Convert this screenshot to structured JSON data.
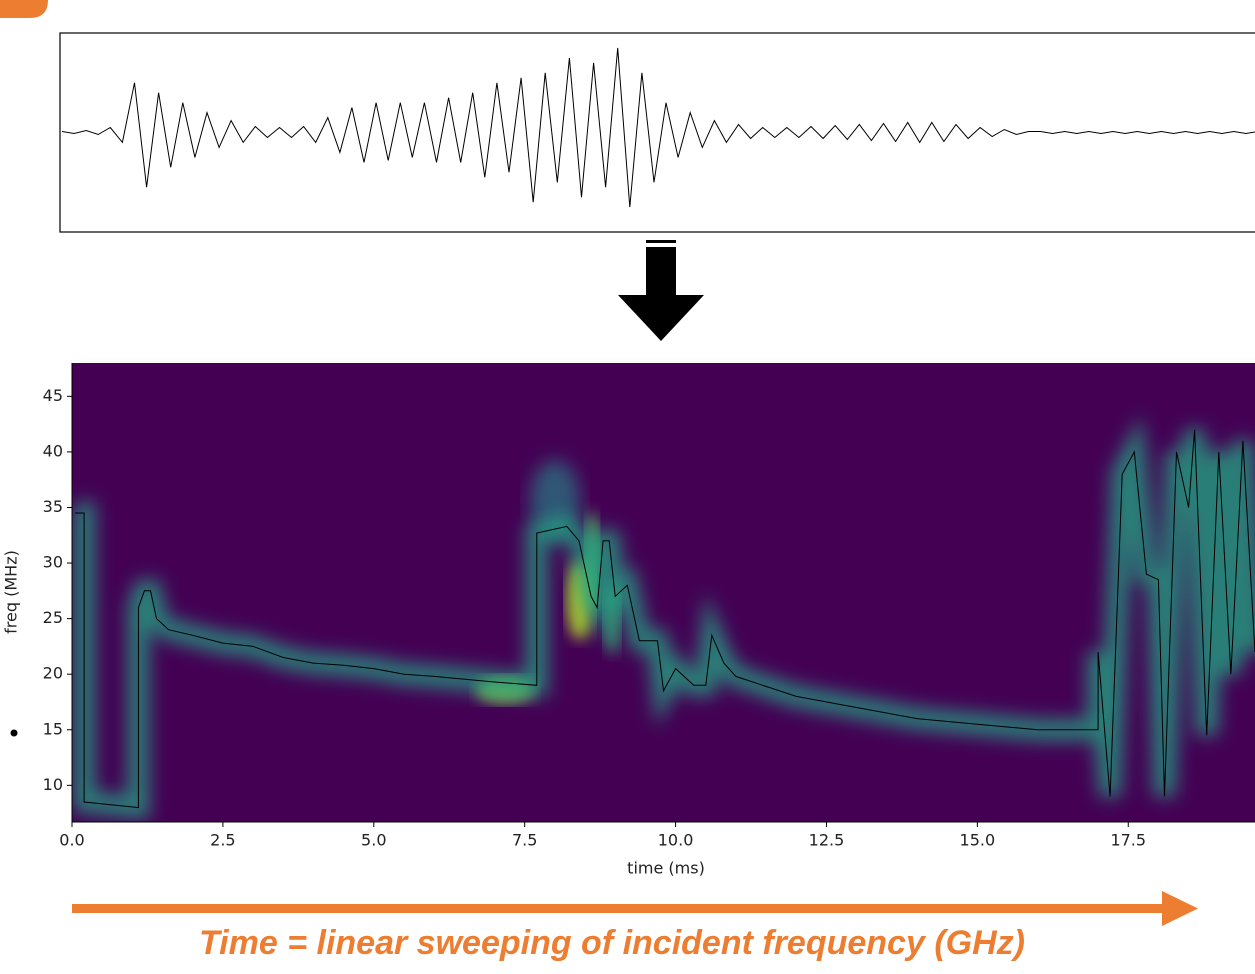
{
  "chart_data": [
    {
      "type": "line",
      "color": "#000000",
      "ylim": [
        -1,
        1
      ],
      "values": [
        0.01,
        -0.01,
        0.02,
        -0.02,
        0.05,
        -0.1,
        0.5,
        -0.55,
        0.4,
        -0.35,
        0.3,
        -0.25,
        0.2,
        -0.15,
        0.12,
        -0.1,
        0.06,
        -0.05,
        0.05,
        -0.05,
        0.06,
        -0.1,
        0.15,
        -0.2,
        0.25,
        -0.3,
        0.3,
        -0.28,
        0.3,
        -0.25,
        0.3,
        -0.3,
        0.35,
        -0.3,
        0.4,
        -0.45,
        0.5,
        -0.4,
        0.55,
        -0.7,
        0.6,
        -0.5,
        0.75,
        -0.65,
        0.7,
        -0.55,
        0.85,
        -0.75,
        0.6,
        -0.5,
        0.3,
        -0.25,
        0.2,
        -0.15,
        0.12,
        -0.1,
        0.08,
        -0.06,
        0.05,
        -0.05,
        0.05,
        -0.05,
        0.06,
        -0.06,
        0.07,
        -0.07,
        0.08,
        -0.08,
        0.09,
        -0.09,
        0.1,
        -0.1,
        0.1,
        -0.09,
        0.08,
        -0.06,
        0.05,
        -0.04,
        0.03,
        -0.02,
        0.01,
        0.01,
        -0.01,
        0.01,
        -0.01,
        0.01,
        -0.01,
        0.01,
        -0.01,
        0.01,
        -0.01,
        0.01,
        -0.01,
        0.01,
        -0.01,
        0.01,
        -0.01,
        0.01,
        -0.01,
        0.01
      ]
    },
    {
      "type": "spectrogram",
      "xlabel": "time (ms)",
      "ylabel": "freq (MHz)",
      "color": "#000000",
      "xlim": [
        0,
        19.6
      ],
      "ylim": [
        6.7,
        48
      ],
      "xticks": [
        {
          "value": 0,
          "label": "0.0"
        },
        {
          "value": 2.5,
          "label": "2.5"
        },
        {
          "value": 5,
          "label": "5.0"
        },
        {
          "value": 7.5,
          "label": "7.5"
        },
        {
          "value": 10,
          "label": "10.0"
        },
        {
          "value": 12.5,
          "label": "12.5"
        },
        {
          "value": 15,
          "label": "15.0"
        },
        {
          "value": 17.5,
          "label": "17.5"
        }
      ],
      "yticks": [
        10,
        15,
        20,
        25,
        30,
        35,
        40,
        45
      ],
      "x": [
        0.05,
        0.2,
        0.2,
        1.1,
        1.1,
        1.2,
        1.3,
        1.4,
        1.6,
        2,
        2.5,
        3,
        3.5,
        4,
        4.5,
        5,
        5.5,
        6,
        7,
        7.7,
        7.7,
        8.2,
        8.4,
        8.6,
        8.7,
        8.8,
        8.9,
        9,
        9.2,
        9.4,
        9.7,
        9.8,
        10,
        10.3,
        10.5,
        10.6,
        10.8,
        11,
        12,
        13,
        14,
        15,
        16,
        17,
        17,
        17.2,
        17.4,
        17.6,
        17.8,
        18,
        18.1,
        18.3,
        18.5,
        18.6,
        18.8,
        19,
        19.2,
        19.4,
        19.6
      ],
      "values": [
        34.5,
        34.5,
        8.5,
        8,
        26,
        27.5,
        27.5,
        25,
        24,
        23.5,
        22.8,
        22.5,
        21.5,
        21,
        20.8,
        20.5,
        20,
        19.8,
        19.3,
        19,
        32.7,
        33.3,
        32,
        27,
        26,
        32,
        32,
        27,
        28,
        23,
        23,
        18.5,
        20.5,
        19,
        19,
        23.5,
        21,
        19.8,
        18,
        17,
        16,
        15.5,
        15,
        15,
        22,
        9,
        38,
        40,
        29,
        28.5,
        9,
        40,
        35,
        42,
        14.5,
        40,
        20,
        41,
        22
      ]
    },
    {
      "caption": "Time = linear sweeping of incident frequency (GHz)"
    }
  ]
}
